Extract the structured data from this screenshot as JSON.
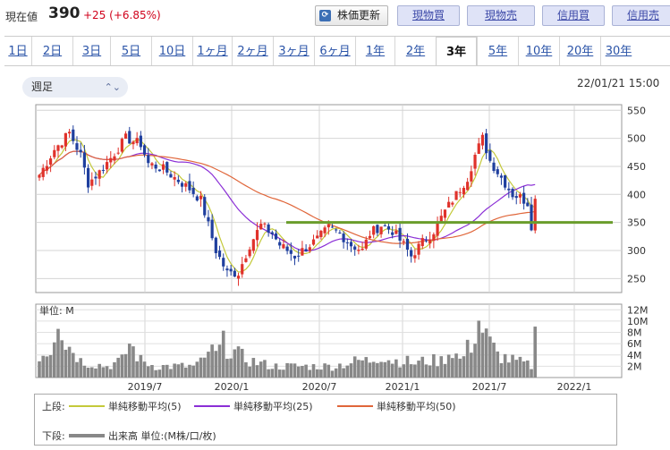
{
  "header": {
    "price_label": "現在値",
    "price_value": "390",
    "price_change": "+25 (+6.85%)",
    "update_icon": "refresh-icon",
    "update_label": "株価更新",
    "actions": [
      "現物買",
      "現物売",
      "信用買",
      "信用売"
    ]
  },
  "periods": {
    "items": [
      "1日",
      "2日",
      "3日",
      "5日",
      "10日",
      "1ヶ月",
      "2ヶ月",
      "3ヶ月",
      "6ヶ月",
      "1年",
      "2年",
      "3年",
      "5年",
      "10年",
      "20年",
      "30年"
    ],
    "active": "3年"
  },
  "toolbar": {
    "interval_select": "週足",
    "timestamp": "22/01/21 15:00"
  },
  "chart_data": {
    "type": "candlestick",
    "y_ticks": [
      "550",
      "500",
      "450",
      "400",
      "350",
      "300",
      "250"
    ],
    "ylim": [
      225,
      560
    ],
    "support_line": 350,
    "support_color": "#6a9d2c",
    "up_color": "#e0322b",
    "down_color": "#1f3f9e",
    "volume_unit": "単位: M",
    "volume_ticks": [
      "12M",
      "10M",
      "8M",
      "6M",
      "4M",
      "2M"
    ],
    "volume_max": 13,
    "x_labels": [
      "2019/7",
      "2020/1",
      "2020/7",
      "2021/1",
      "2021/7",
      "2022/1"
    ],
    "weeks": 156,
    "price_anchors": [
      [
        0,
        435
      ],
      [
        4,
        480
      ],
      [
        8,
        510
      ],
      [
        11,
        470
      ],
      [
        13,
        420
      ],
      [
        16,
        440
      ],
      [
        19,
        465
      ],
      [
        23,
        500
      ],
      [
        27,
        490
      ],
      [
        29,
        455
      ],
      [
        33,
        445
      ],
      [
        37,
        425
      ],
      [
        40,
        410
      ],
      [
        43,
        390
      ],
      [
        45,
        345
      ],
      [
        47,
        300
      ],
      [
        50,
        260
      ],
      [
        53,
        260
      ],
      [
        56,
        310
      ],
      [
        59,
        345
      ],
      [
        62,
        330
      ],
      [
        64,
        310
      ],
      [
        68,
        290
      ],
      [
        71,
        305
      ],
      [
        74,
        320
      ],
      [
        77,
        340
      ],
      [
        80,
        330
      ],
      [
        83,
        310
      ],
      [
        86,
        300
      ],
      [
        88,
        330
      ],
      [
        91,
        345
      ],
      [
        94,
        335
      ],
      [
        97,
        310
      ],
      [
        99,
        290
      ],
      [
        102,
        315
      ],
      [
        105,
        335
      ],
      [
        108,
        370
      ],
      [
        111,
        400
      ],
      [
        114,
        430
      ],
      [
        116,
        470
      ],
      [
        118,
        500
      ],
      [
        120,
        460
      ],
      [
        123,
        430
      ],
      [
        126,
        400
      ],
      [
        128,
        395
      ],
      [
        130,
        385
      ],
      [
        131,
        345
      ],
      [
        132,
        390
      ]
    ],
    "volume_anchors": [
      [
        0,
        4
      ],
      [
        3,
        5
      ],
      [
        5,
        12
      ],
      [
        7,
        6
      ],
      [
        9,
        5
      ],
      [
        11,
        3
      ],
      [
        14,
        2.5
      ],
      [
        18,
        2
      ],
      [
        22,
        3
      ],
      [
        24,
        6
      ],
      [
        27,
        3
      ],
      [
        31,
        2
      ],
      [
        35,
        2
      ],
      [
        38,
        2
      ],
      [
        41,
        2
      ],
      [
        44,
        3
      ],
      [
        45,
        5
      ],
      [
        47,
        4
      ],
      [
        49,
        6
      ],
      [
        51,
        5
      ],
      [
        53,
        4
      ],
      [
        56,
        3
      ],
      [
        59,
        2.5
      ],
      [
        62,
        2
      ],
      [
        66,
        2
      ],
      [
        70,
        2
      ],
      [
        74,
        2
      ],
      [
        78,
        2
      ],
      [
        82,
        2.5
      ],
      [
        85,
        3
      ],
      [
        88,
        3
      ],
      [
        91,
        4
      ],
      [
        94,
        3
      ],
      [
        97,
        3
      ],
      [
        100,
        2.5
      ],
      [
        103,
        3
      ],
      [
        107,
        3
      ],
      [
        110,
        5
      ],
      [
        112,
        3
      ],
      [
        115,
        6
      ],
      [
        117,
        10
      ],
      [
        119,
        7
      ],
      [
        122,
        4
      ],
      [
        126,
        3
      ],
      [
        129,
        2.5
      ],
      [
        131,
        2
      ],
      [
        132,
        7.5
      ]
    ],
    "series": [
      {
        "name": "単純移動平均(5)",
        "color": "#c4c93a"
      },
      {
        "name": "単純移動平均(25)",
        "color": "#8b2fd6"
      },
      {
        "name": "単純移動平均(50)",
        "color": "#e0663a"
      }
    ],
    "legend_upper_label": "上段:",
    "legend_lower_label": "下段:",
    "volume_legend": "出来高 単位:(M株/口/枚)",
    "volume_color": "#888888"
  }
}
